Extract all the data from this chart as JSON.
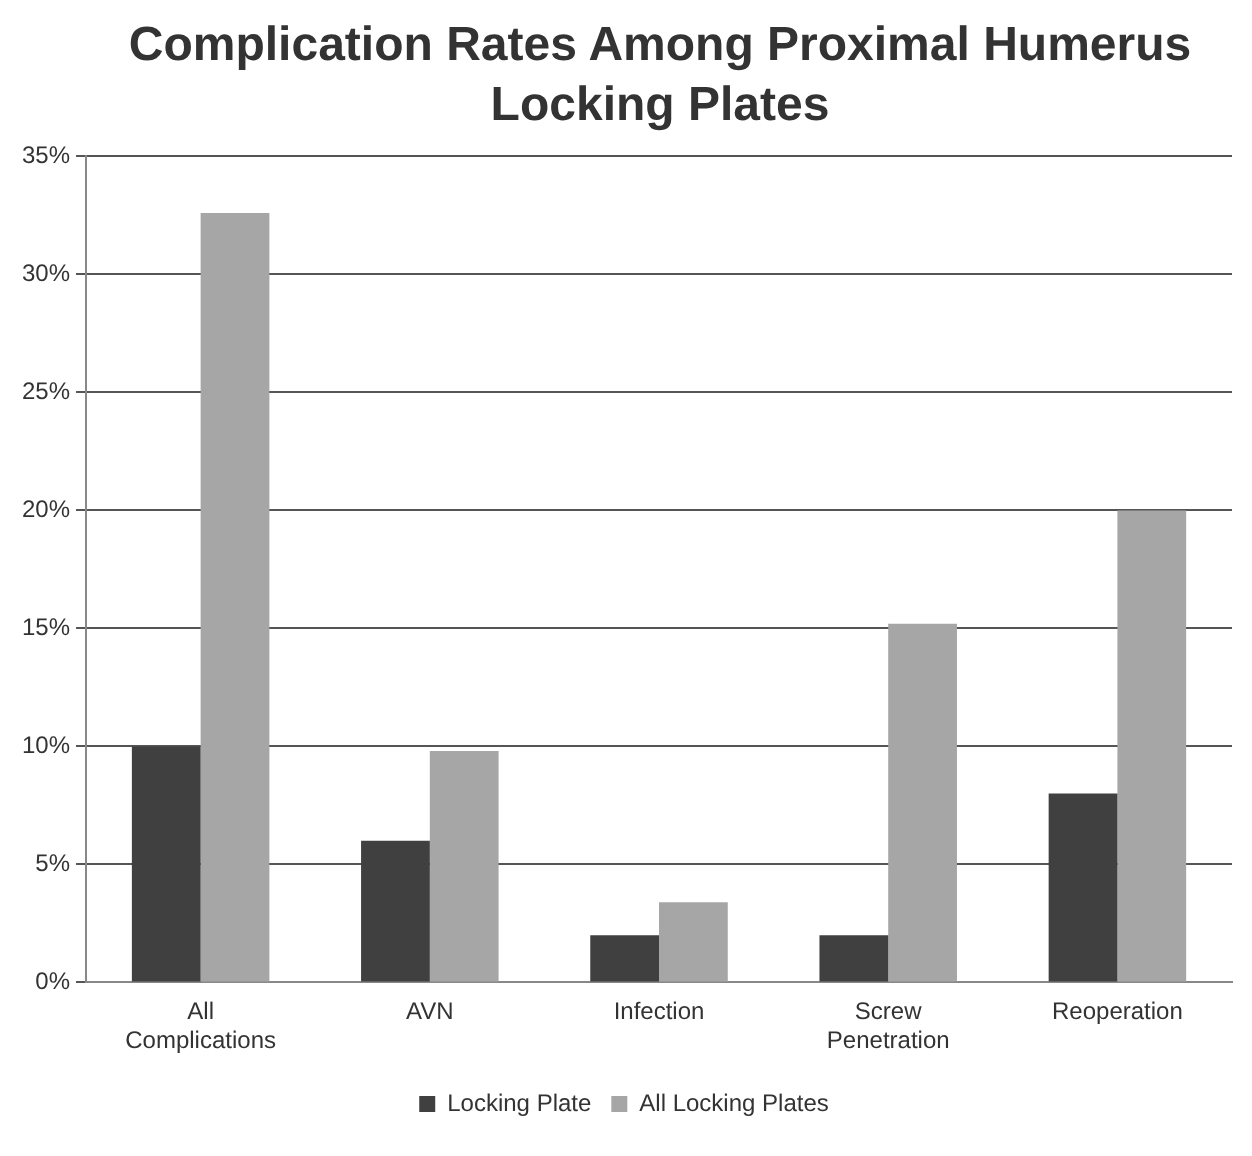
{
  "chart_data": {
    "type": "bar",
    "title": "Complication Rates Among Proximal Humerus Locking Plates",
    "categories": [
      "All Complications",
      "AVN",
      "Infection",
      "Screw Penetration",
      "Reoperation"
    ],
    "series": [
      {
        "name": "Locking Plate",
        "color": "#404040",
        "values": [
          10,
          6,
          2,
          2,
          8
        ]
      },
      {
        "name": "All Locking Plates",
        "color": "#a6a6a6",
        "values": [
          32.6,
          9.8,
          3.4,
          15.2,
          20
        ]
      }
    ],
    "ylim": [
      0,
      35
    ],
    "yticks": [
      {
        "value": 0,
        "label": "0%"
      },
      {
        "value": 5,
        "label": "5%"
      },
      {
        "value": 10,
        "label": "10%"
      },
      {
        "value": 15,
        "label": "15%"
      },
      {
        "value": 20,
        "label": "20%"
      },
      {
        "value": 25,
        "label": "25%"
      },
      {
        "value": 30,
        "label": "30%"
      },
      {
        "value": 35,
        "label": "35%"
      }
    ],
    "grid": "y",
    "legend": "bottom"
  }
}
